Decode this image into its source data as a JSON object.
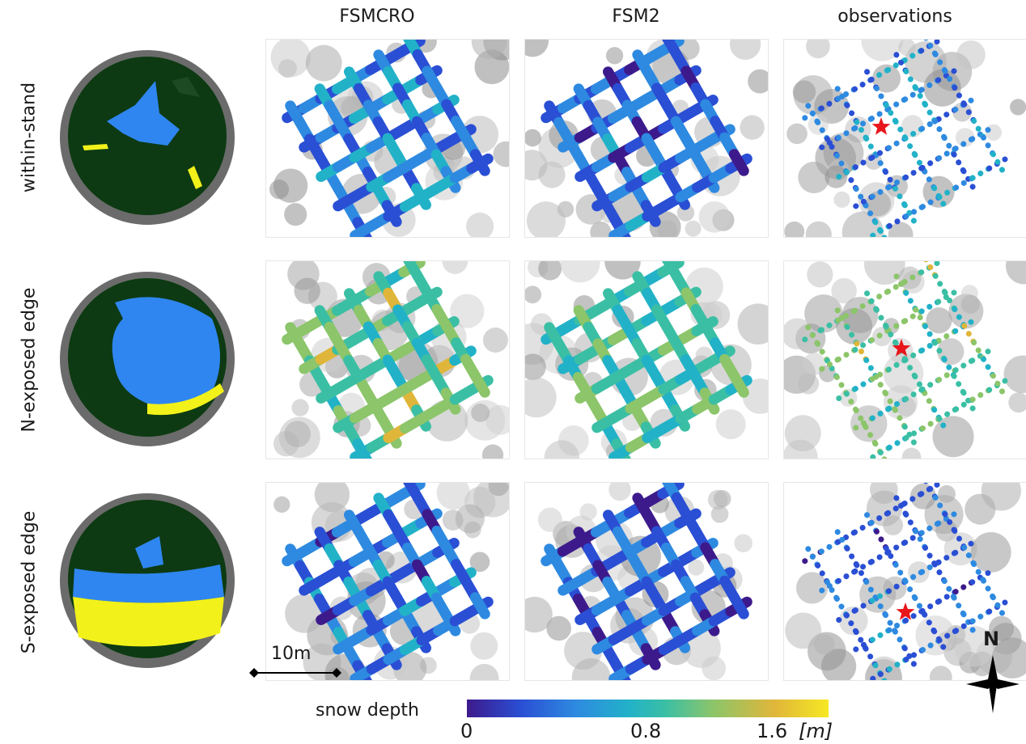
{
  "columns": [
    "FSMCRO",
    "FSM2",
    "observations"
  ],
  "rows": [
    "within-stand",
    "N-exposed edge",
    "S-exposed edge"
  ],
  "scalebar": {
    "label": "10m"
  },
  "north_arrow": {
    "label": "N"
  },
  "colorbar": {
    "label": "snow depth",
    "ticks": [
      "0",
      "0.8",
      "1.6"
    ],
    "unit": "[m]",
    "colors": [
      "#3d1a8c",
      "#2a4fd4",
      "#2e8ae0",
      "#22b2c8",
      "#3bbfa4",
      "#8cc56a",
      "#e0b63a",
      "#f6e823"
    ]
  },
  "legend_colors": {
    "canopy": "#0d3a12",
    "sky": "#2f86f0",
    "direct_sun": "#f2f21a",
    "mask": "#6b6b6b"
  },
  "marker": {
    "color": "#e8161b",
    "shape": "star"
  }
}
